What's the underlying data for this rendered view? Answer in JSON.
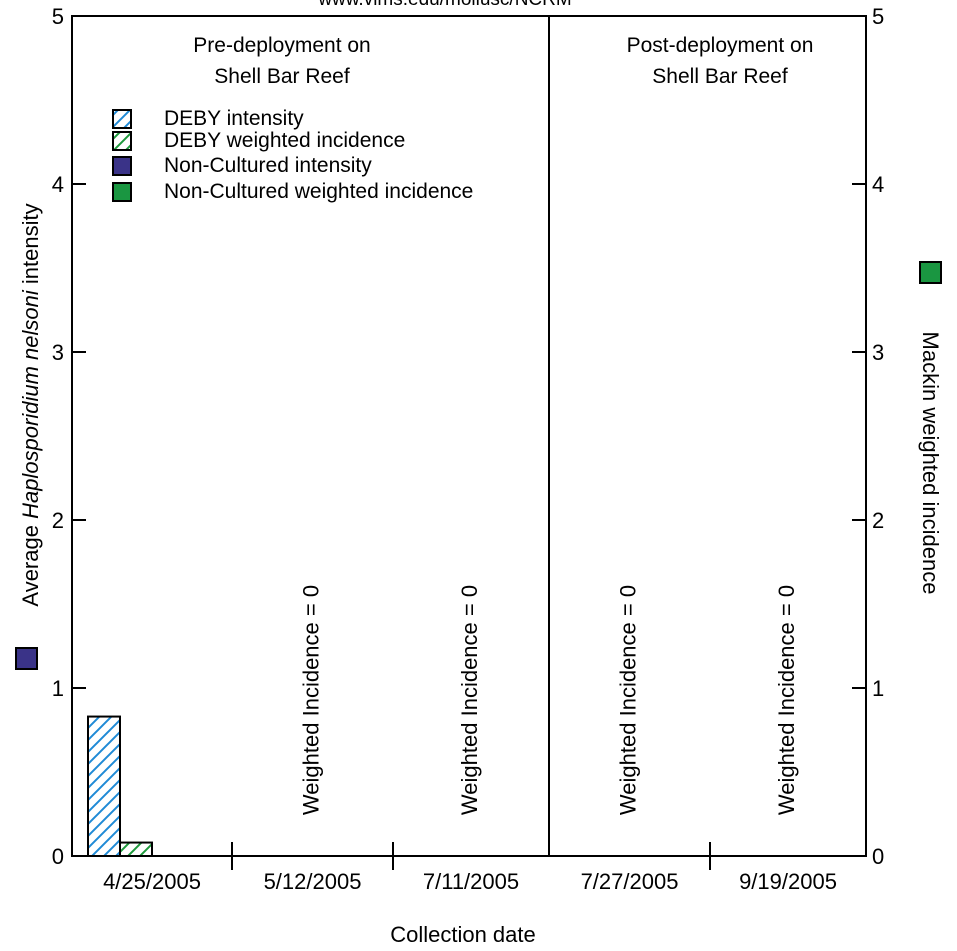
{
  "chart_data": {
    "type": "bar",
    "url_text": "www.vims.edu/mollusc/NCRM",
    "categories": [
      "4/25/2005",
      "5/12/2005",
      "7/11/2005",
      "7/27/2005",
      "9/19/2005"
    ],
    "series": [
      {
        "name": "DEBY intensity",
        "values": [
          0.83,
          0,
          0,
          0,
          0
        ],
        "color": "#1f8ad6",
        "pattern": "hatch"
      },
      {
        "name": "DEBY weighted incidence",
        "values": [
          0.08,
          0,
          0,
          0,
          0
        ],
        "color": "#1e9a3c",
        "pattern": "hatch"
      },
      {
        "name": "Non-Cultured intensity",
        "values": [
          null,
          null,
          null,
          null,
          null
        ],
        "color": "#3a3388",
        "pattern": "solid"
      },
      {
        "name": "Non-Cultured weighted incidence",
        "values": [
          null,
          null,
          null,
          null,
          null
        ],
        "color": "#1a9641",
        "pattern": "solid"
      }
    ],
    "legend_text_colors": [
      "#3d1e80",
      "#1e6e4e",
      "#3d1e80",
      "#1e6e4e"
    ],
    "ylim": [
      0,
      5
    ],
    "yticks": [
      "0",
      "1",
      "2",
      "3",
      "4",
      "5"
    ],
    "y2ticks": [
      "0",
      "1",
      "2",
      "3",
      "4",
      "5"
    ],
    "xlabel": "Collection date",
    "ylabel_prefix": "Average ",
    "ylabel_italic": "Haplosporidium nelsoni",
    "ylabel_suffix": " intensity",
    "ylabel_marker_color": "#3a3388",
    "y2label": "Mackin weighted incidence",
    "y2label_marker_color": "#1a9641",
    "annotations": [
      {
        "text": "Weighted Incidence = 0",
        "category_index": 1
      },
      {
        "text": "Weighted Incidence = 0",
        "category_index": 2
      },
      {
        "text": "Weighted Incidence = 0",
        "category_index": 3
      },
      {
        "text": "Weighted Incidence = 0",
        "category_index": 4
      }
    ],
    "region_labels": [
      {
        "line1": "Pre-deployment on",
        "line2": "Shell Bar Reef"
      },
      {
        "line1": "Post-deployment on",
        "line2": "Shell Bar Reef"
      }
    ],
    "divider_after_category": 2,
    "legend_placement": "top-left",
    "grid": false
  }
}
